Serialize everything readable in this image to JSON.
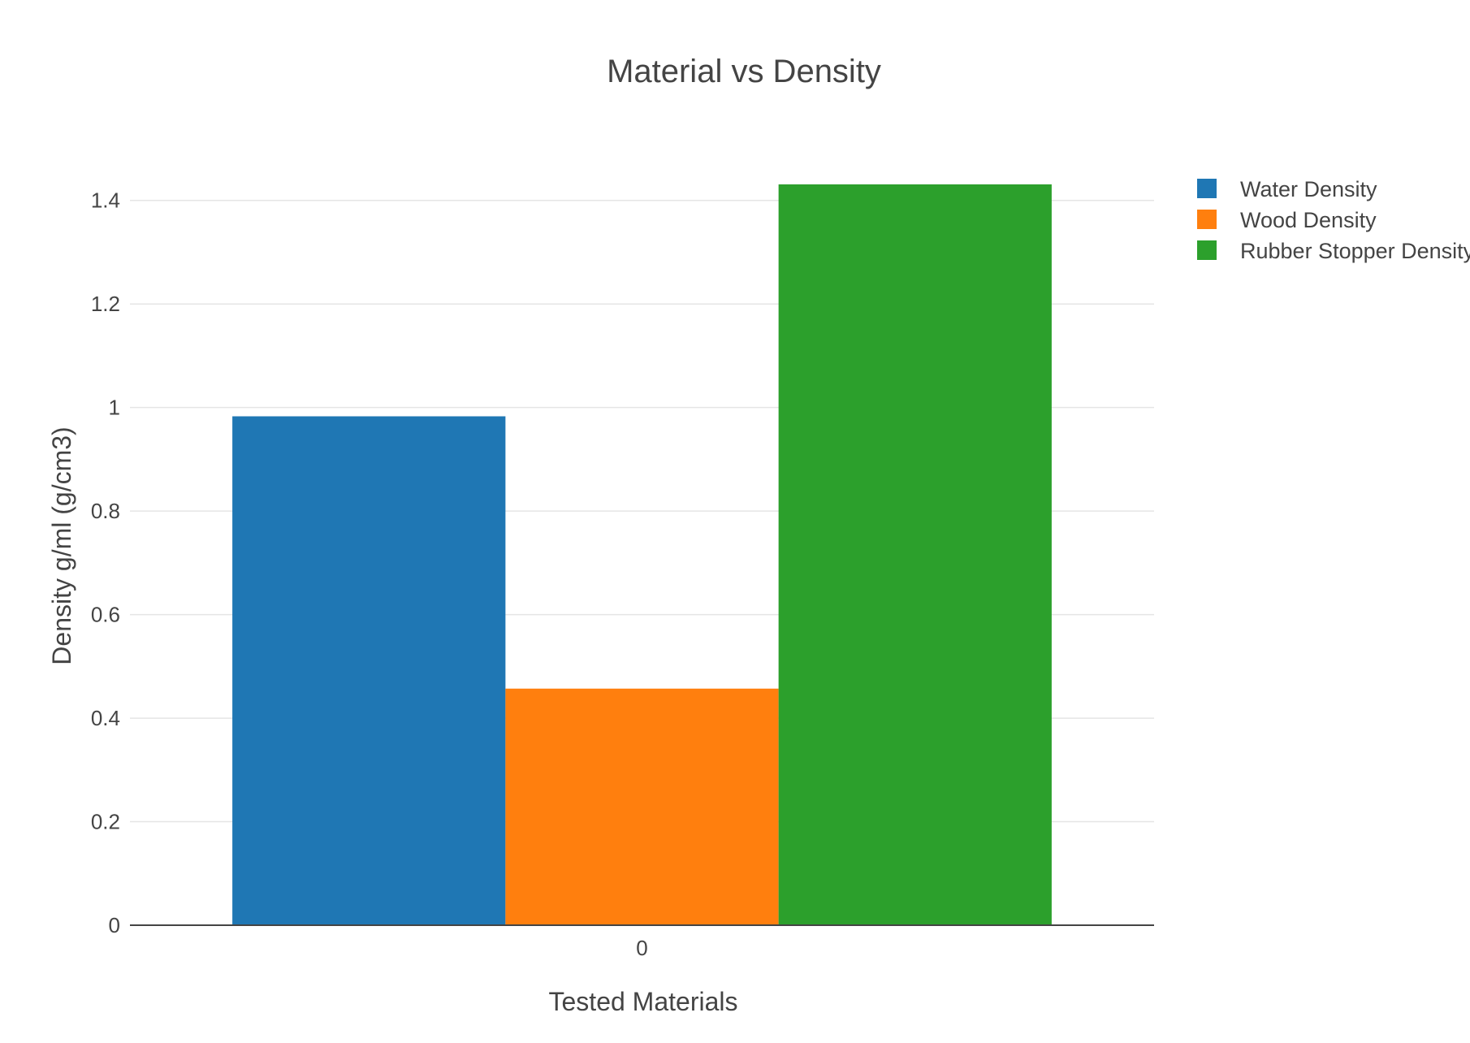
{
  "chart_data": {
    "type": "bar",
    "title": "Material vs Density",
    "xlabel": "Tested Materials",
    "ylabel": "Density g/ml (g/cm3)",
    "categories": [
      "0"
    ],
    "ylim": [
      0,
      1.5
    ],
    "yticks": [
      0,
      0.2,
      0.4,
      0.6,
      0.8,
      1,
      1.2,
      1.4
    ],
    "ytick_labels": [
      "0",
      "0.2",
      "0.4",
      "0.6",
      "0.8",
      "1",
      "1.2",
      "1.4"
    ],
    "grid": true,
    "legend_position": "top-right",
    "series": [
      {
        "name": "Water Density",
        "values": [
          0.983
        ],
        "color": "#1f77b4"
      },
      {
        "name": "Wood Density",
        "values": [
          0.457
        ],
        "color": "#ff7f0e"
      },
      {
        "name": "Rubber Stopper Density",
        "values": [
          1.431
        ],
        "color": "#2ca02c"
      }
    ]
  }
}
